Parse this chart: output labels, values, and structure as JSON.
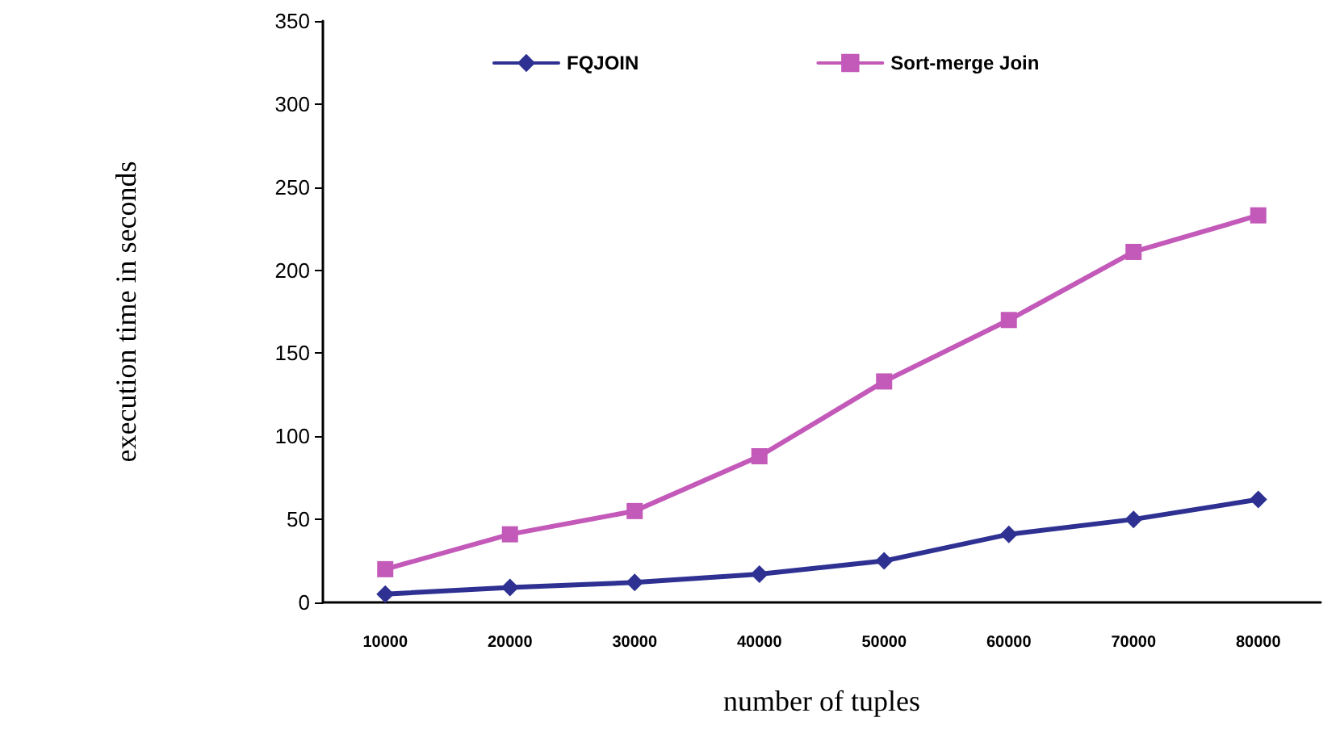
{
  "chart_data": {
    "type": "line",
    "xlabel": "number of tuples",
    "ylabel": "execution time in seconds",
    "categories": [
      "10000",
      "20000",
      "30000",
      "40000",
      "50000",
      "60000",
      "70000",
      "80000"
    ],
    "series": [
      {
        "name": "FQJOIN",
        "color": "#2e3192",
        "marker": "diamond",
        "values": [
          5,
          9,
          12,
          17,
          25,
          41,
          50,
          62
        ]
      },
      {
        "name": "Sort-merge Join",
        "color": "#c359b8",
        "marker": "square",
        "values": [
          20,
          41,
          55,
          88,
          133,
          170,
          211,
          233
        ]
      }
    ],
    "ylim": [
      0,
      350
    ],
    "yticks": [
      0,
      50,
      100,
      150,
      200,
      250,
      300,
      350
    ],
    "grid": false,
    "legend": "top",
    "line_style": "solid"
  }
}
